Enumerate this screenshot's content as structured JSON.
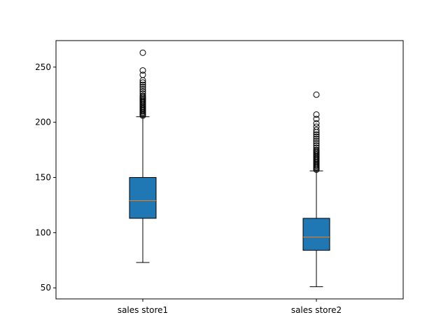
{
  "chart_data": {
    "type": "boxplot",
    "title": "",
    "xlabel": "",
    "ylabel": "",
    "ylim": [
      40,
      274
    ],
    "yticks": [
      50,
      100,
      150,
      200,
      250
    ],
    "grid": false,
    "legend": "none",
    "colors": {
      "box_fill": "#1f77b4",
      "median": "#ff7f0e",
      "line": "#000000"
    },
    "categories": [
      "sales store1",
      "sales store2"
    ],
    "series": [
      {
        "category": "sales store1",
        "whisker_low": 73,
        "q1": 113,
        "median": 129,
        "q3": 150,
        "whisker_high": 205,
        "outliers": [
          206,
          207,
          208,
          209,
          210,
          211,
          212,
          213,
          214,
          215,
          216,
          217,
          218,
          219,
          220,
          221,
          222,
          223,
          224,
          226,
          228,
          230,
          232,
          234,
          236,
          238,
          243,
          247,
          263
        ]
      },
      {
        "category": "sales store2",
        "whisker_low": 51,
        "q1": 84,
        "median": 96,
        "q3": 113,
        "whisker_high": 156,
        "outliers": [
          157,
          158,
          159,
          160,
          161,
          162,
          163,
          164,
          165,
          166,
          167,
          168,
          169,
          170,
          171,
          172,
          173,
          174,
          175,
          177,
          179,
          181,
          183,
          185,
          187,
          189,
          191,
          193,
          196,
          199,
          203,
          207,
          225
        ]
      }
    ]
  }
}
